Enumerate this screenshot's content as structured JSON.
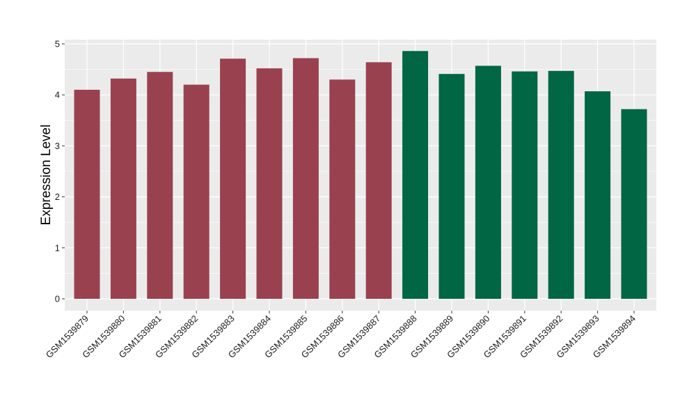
{
  "chart_data": {
    "type": "bar",
    "title": "",
    "xlabel": "",
    "ylabel": "Expression Level",
    "ylim": [
      0,
      5
    ],
    "yticks": [
      0,
      1,
      2,
      3,
      4,
      5
    ],
    "grid": true,
    "legend": "none",
    "background_color": "#ebebeb",
    "gridline_color": "#ffffff",
    "categories": [
      "GSM1539879",
      "GSM1539880",
      "GSM1539881",
      "GSM1539882",
      "GSM1539883",
      "GSM1539884",
      "GSM1539885",
      "GSM1539886",
      "GSM1539887",
      "GSM1539888",
      "GSM1539889",
      "GSM1539890",
      "GSM1539891",
      "GSM1539892",
      "GSM1539893",
      "GSM1539894"
    ],
    "values": [
      4.1,
      4.32,
      4.45,
      4.2,
      4.71,
      4.52,
      4.72,
      4.3,
      4.64,
      4.86,
      4.41,
      4.57,
      4.46,
      4.47,
      4.07,
      3.72
    ],
    "bar_colors": [
      "#9a4150",
      "#9a4150",
      "#9a4150",
      "#9a4150",
      "#9a4150",
      "#9a4150",
      "#9a4150",
      "#9a4150",
      "#9a4150",
      "#006643",
      "#006643",
      "#006643",
      "#006643",
      "#006643",
      "#006643",
      "#006643"
    ]
  }
}
